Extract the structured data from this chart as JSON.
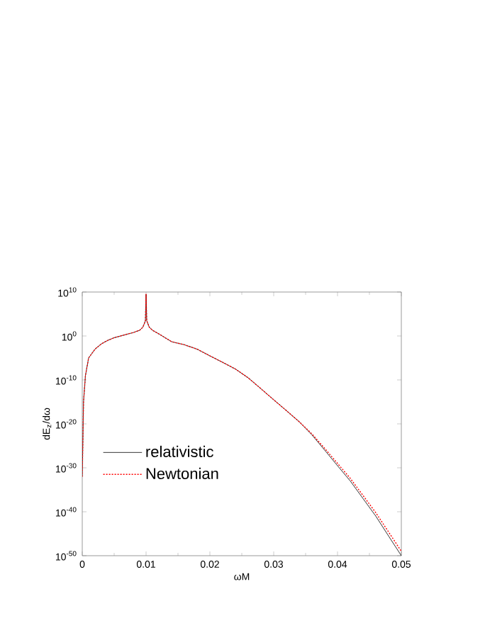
{
  "chart_data": {
    "type": "line",
    "xlabel": "ωM",
    "ylabel": "dE$_{z}$/dω",
    "log": "y",
    "legend": "center left",
    "grid": false,
    "marker": "none",
    "xlim": [
      0,
      0.05
    ],
    "xticks": [
      0,
      0.01,
      0.02,
      0.03,
      0.04,
      0.05
    ],
    "ylim": [
      1e-50,
      10000000000.0
    ],
    "yticks": [
      {
        "value": 1e-50,
        "label": "10$^{-50}$"
      },
      {
        "value": 1e-40,
        "label": "10$^{-40}$"
      },
      {
        "value": 1e-30,
        "label": "10$^{-30}$"
      },
      {
        "value": 1e-20,
        "label": "10$^{-20}$"
      },
      {
        "value": 1e-10,
        "label": "10$^{-10}$"
      },
      {
        "value": 1,
        "label": "10$^{0}$"
      },
      {
        "value": 10000000000.0,
        "label": "10$^{10}$"
      }
    ],
    "x": [
      0,
      0.0002,
      0.0005,
      0.001,
      0.002,
      0.003,
      0.004,
      0.005,
      0.006,
      0.007,
      0.008,
      0.009,
      0.0095,
      0.0099,
      0.01,
      0.0101,
      0.0105,
      0.011,
      0.012,
      0.014,
      0.016,
      0.018,
      0.02,
      0.022,
      0.024,
      0.026,
      0.028,
      0.03,
      0.032,
      0.034,
      0.036,
      0.038,
      0.04,
      0.042,
      0.044,
      0.046,
      0.048,
      0.05
    ],
    "series": [
      {
        "name": "relativistic",
        "color": "#000000",
        "line_style": "solid",
        "values": [
          1e-32,
          1e-15,
          1e-09,
          1e-05,
          0.001,
          0.016,
          0.1,
          0.4,
          1,
          2.5,
          6,
          20,
          100,
          3000,
          3000000000.0,
          3000,
          100,
          20,
          3,
          0.05,
          0.01,
          0.001,
          3e-05,
          1e-06,
          3e-08,
          3e-10,
          1e-12,
          3e-15,
          1e-17,
          3e-20,
          3e-23,
          1e-26,
          3e-30,
          1e-33,
          1e-37,
          1e-41,
          3e-46,
          1e-50
        ]
      },
      {
        "name": "Newtonian",
        "color": "#ff0000",
        "line_style": "dotted",
        "values": [
          1e-32,
          1e-15,
          1e-09,
          1e-05,
          0.001,
          0.016,
          0.1,
          0.4,
          1,
          2.5,
          6,
          20,
          100,
          3000,
          3000000000.0,
          3000,
          100,
          20,
          3,
          0.05,
          0.01,
          0.001,
          3e-05,
          1e-06,
          3e-08,
          3e-10,
          1e-12,
          3e-15,
          1e-17,
          3e-20,
          5e-23,
          2.5e-26,
          1e-29,
          4e-33,
          5e-37,
          6e-41,
          2.5e-45,
          1e-49
        ]
      }
    ]
  }
}
